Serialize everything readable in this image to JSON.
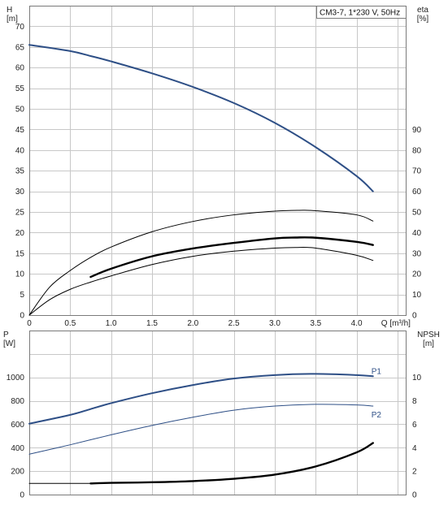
{
  "chart_data": [
    {
      "type": "line",
      "title": "CM3-7, 1*230 V, 50Hz",
      "xlabel": "Q [m³/h]",
      "ylabel": "H\n[m]",
      "ylabel_right": "eta\n[%]",
      "xlim": [
        0,
        4.6
      ],
      "ylim": [
        0,
        75
      ],
      "ylim_right": [
        0,
        150
      ],
      "x_ticks": [
        "0",
        "0.5",
        "1.0",
        "1.5",
        "2.0",
        "2.5",
        "3.0",
        "3.5",
        "4.0"
      ],
      "y_ticks": [
        "0",
        "5",
        "10",
        "15",
        "20",
        "25",
        "30",
        "35",
        "40",
        "45",
        "50",
        "55",
        "60",
        "65",
        "70"
      ],
      "y_ticks_right": [
        "0",
        "10",
        "20",
        "30",
        "40",
        "50",
        "60",
        "70",
        "80",
        "90"
      ],
      "grid": true,
      "legend": "top-right",
      "series": [
        {
          "axis": "left",
          "color": "#2e4f86",
          "width": 2,
          "x": [
            0,
            0.5,
            0.75,
            1.0,
            1.5,
            2.0,
            2.5,
            3.0,
            3.5,
            4.0,
            4.2
          ],
          "y": [
            65.5,
            64.0,
            62.8,
            61.5,
            58.6,
            55.3,
            51.4,
            46.6,
            40.7,
            33.7,
            30.0
          ]
        },
        {
          "axis": "right",
          "color": "#000000",
          "width": 2.4,
          "x": [
            0.75,
            1.0,
            1.5,
            2.0,
            2.5,
            3.0,
            3.25,
            3.5,
            4.0,
            4.2
          ],
          "y": [
            18.5,
            22.5,
            28.5,
            32.3,
            35.0,
            37.2,
            37.6,
            37.5,
            35.5,
            34.0
          ]
        },
        {
          "axis": "right",
          "color": "#000000",
          "width": 1,
          "x": [
            0,
            0.25,
            0.5,
            0.75,
            1.0,
            1.5,
            2.0,
            2.5,
            3.0,
            3.25,
            3.5,
            4.0,
            4.2
          ],
          "y": [
            0,
            7.5,
            12.5,
            16.0,
            19.0,
            24.5,
            28.5,
            31.0,
            32.5,
            32.8,
            32.5,
            29.0,
            26.5
          ]
        },
        {
          "axis": "left",
          "color": "#000000",
          "width": 1,
          "x": [
            0,
            0.25,
            0.5,
            0.75,
            1.0,
            1.5,
            2.0,
            2.5,
            3.0,
            3.3,
            3.5,
            4.0,
            4.2
          ],
          "y": [
            0,
            6.8,
            10.8,
            14.0,
            16.5,
            20.2,
            22.7,
            24.3,
            25.2,
            25.4,
            25.3,
            24.3,
            22.8
          ]
        }
      ]
    },
    {
      "type": "line",
      "xlabel": "",
      "ylabel": "P\n[W]",
      "ylabel_right": "NPSH\n[m]",
      "xlim": [
        0,
        4.6
      ],
      "ylim": [
        0,
        1400
      ],
      "ylim_right": [
        0,
        14
      ],
      "y_ticks": [
        "0",
        "200",
        "400",
        "600",
        "800",
        "1000"
      ],
      "y_ticks_right": [
        "0",
        "2",
        "4",
        "6",
        "8",
        "10"
      ],
      "grid": true,
      "series": [
        {
          "name": "P1",
          "axis": "left",
          "color": "#2e4f86",
          "width": 2,
          "x": [
            0,
            0.5,
            0.75,
            1.0,
            1.5,
            2.0,
            2.5,
            3.0,
            3.5,
            4.0,
            4.2
          ],
          "y": [
            605,
            680,
            730,
            780,
            865,
            935,
            990,
            1020,
            1030,
            1020,
            1010
          ]
        },
        {
          "name": "P2",
          "axis": "left",
          "color": "#2e4f86",
          "width": 1,
          "x": [
            0,
            0.5,
            1.0,
            1.5,
            2.0,
            2.5,
            3.0,
            3.5,
            4.0,
            4.2
          ],
          "y": [
            345,
            425,
            510,
            590,
            660,
            720,
            755,
            770,
            765,
            755
          ]
        },
        {
          "axis": "right",
          "color": "#000000",
          "width": 2.4,
          "x": [
            0.75,
            1.0,
            1.5,
            2.0,
            2.5,
            3.0,
            3.5,
            4.0,
            4.2
          ],
          "y": [
            0.95,
            1.0,
            1.05,
            1.15,
            1.35,
            1.7,
            2.4,
            3.6,
            4.4
          ]
        },
        {
          "axis": "right",
          "color": "#000000",
          "width": 1,
          "x": [
            0,
            0.75
          ],
          "y": [
            0.95,
            0.95
          ]
        }
      ]
    }
  ]
}
